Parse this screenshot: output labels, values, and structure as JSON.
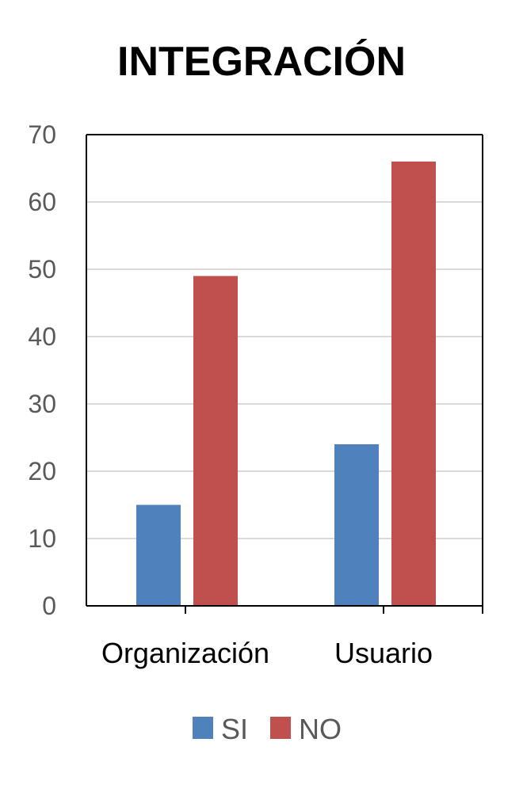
{
  "chart_data": {
    "type": "bar",
    "title": "INTEGRACIÓN",
    "categories": [
      "Organización",
      "Usuario"
    ],
    "series": [
      {
        "name": "SI",
        "color": "#4F81BD",
        "values": [
          15,
          24
        ]
      },
      {
        "name": "NO",
        "color": "#C0504D",
        "values": [
          49,
          66
        ]
      }
    ],
    "ylim": [
      0,
      70
    ],
    "yticks": [
      0,
      10,
      20,
      30,
      40,
      50,
      60,
      70
    ],
    "grid": true,
    "legend": "bottom"
  }
}
